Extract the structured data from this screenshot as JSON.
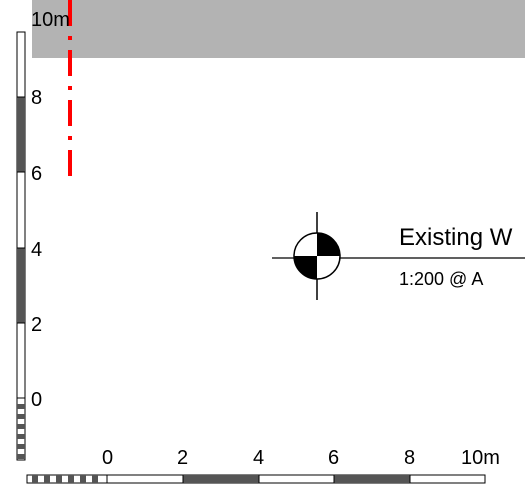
{
  "vertical_scale": {
    "labels": [
      "10m",
      "8",
      "6",
      "4",
      "2",
      "0"
    ]
  },
  "horizontal_scale": {
    "labels": [
      "0",
      "2",
      "4",
      "6",
      "8",
      "10m"
    ]
  },
  "view_title": {
    "name": "Existing W",
    "scale": "1:200 @ A"
  },
  "colors": {
    "shaded_region": "#b3b3b3",
    "dashed_line": "#ff0000",
    "scale_fill": "#555555"
  },
  "icons": {
    "section_marker": "datum-target-icon"
  }
}
